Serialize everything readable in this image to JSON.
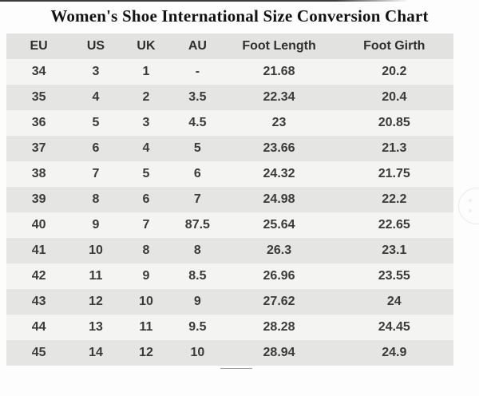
{
  "page": {
    "title": "Women's Shoe International Size Conversion Chart"
  },
  "chart_data": {
    "type": "table",
    "title": "Women's Shoe International Size Conversion Chart",
    "columns": [
      "EU",
      "US",
      "UK",
      "AU",
      "Foot Length",
      "Foot Girth"
    ],
    "rows": [
      [
        "34",
        "3",
        "1",
        "-",
        "21.68",
        "20.2"
      ],
      [
        "35",
        "4",
        "2",
        "3.5",
        "22.34",
        "20.4"
      ],
      [
        "36",
        "5",
        "3",
        "4.5",
        "23",
        "20.85"
      ],
      [
        "37",
        "6",
        "4",
        "5",
        "23.66",
        "21.3"
      ],
      [
        "38",
        "7",
        "5",
        "6",
        "24.32",
        "21.75"
      ],
      [
        "39",
        "8",
        "6",
        "7",
        "24.98",
        "22.2"
      ],
      [
        "40",
        "9",
        "7",
        "87.5",
        "25.64",
        "22.65"
      ],
      [
        "41",
        "10",
        "8",
        "8",
        "26.3",
        "23.1"
      ],
      [
        "42",
        "11",
        "9",
        "8.5",
        "26.96",
        "23.55"
      ],
      [
        "43",
        "12",
        "10",
        "9",
        "27.62",
        "24"
      ],
      [
        "44",
        "13",
        "11",
        "9.5",
        "28.28",
        "24.45"
      ],
      [
        "45",
        "14",
        "12",
        "10",
        "28.94",
        "24.9"
      ]
    ],
    "layout": {
      "header_bg": "#e2e2e0",
      "row_light_bg": "#f4f4f2",
      "row_dark_bg": "#e5e5e3",
      "text_color": "#3a3a3a",
      "grid": false,
      "zebra_striping": true
    }
  }
}
